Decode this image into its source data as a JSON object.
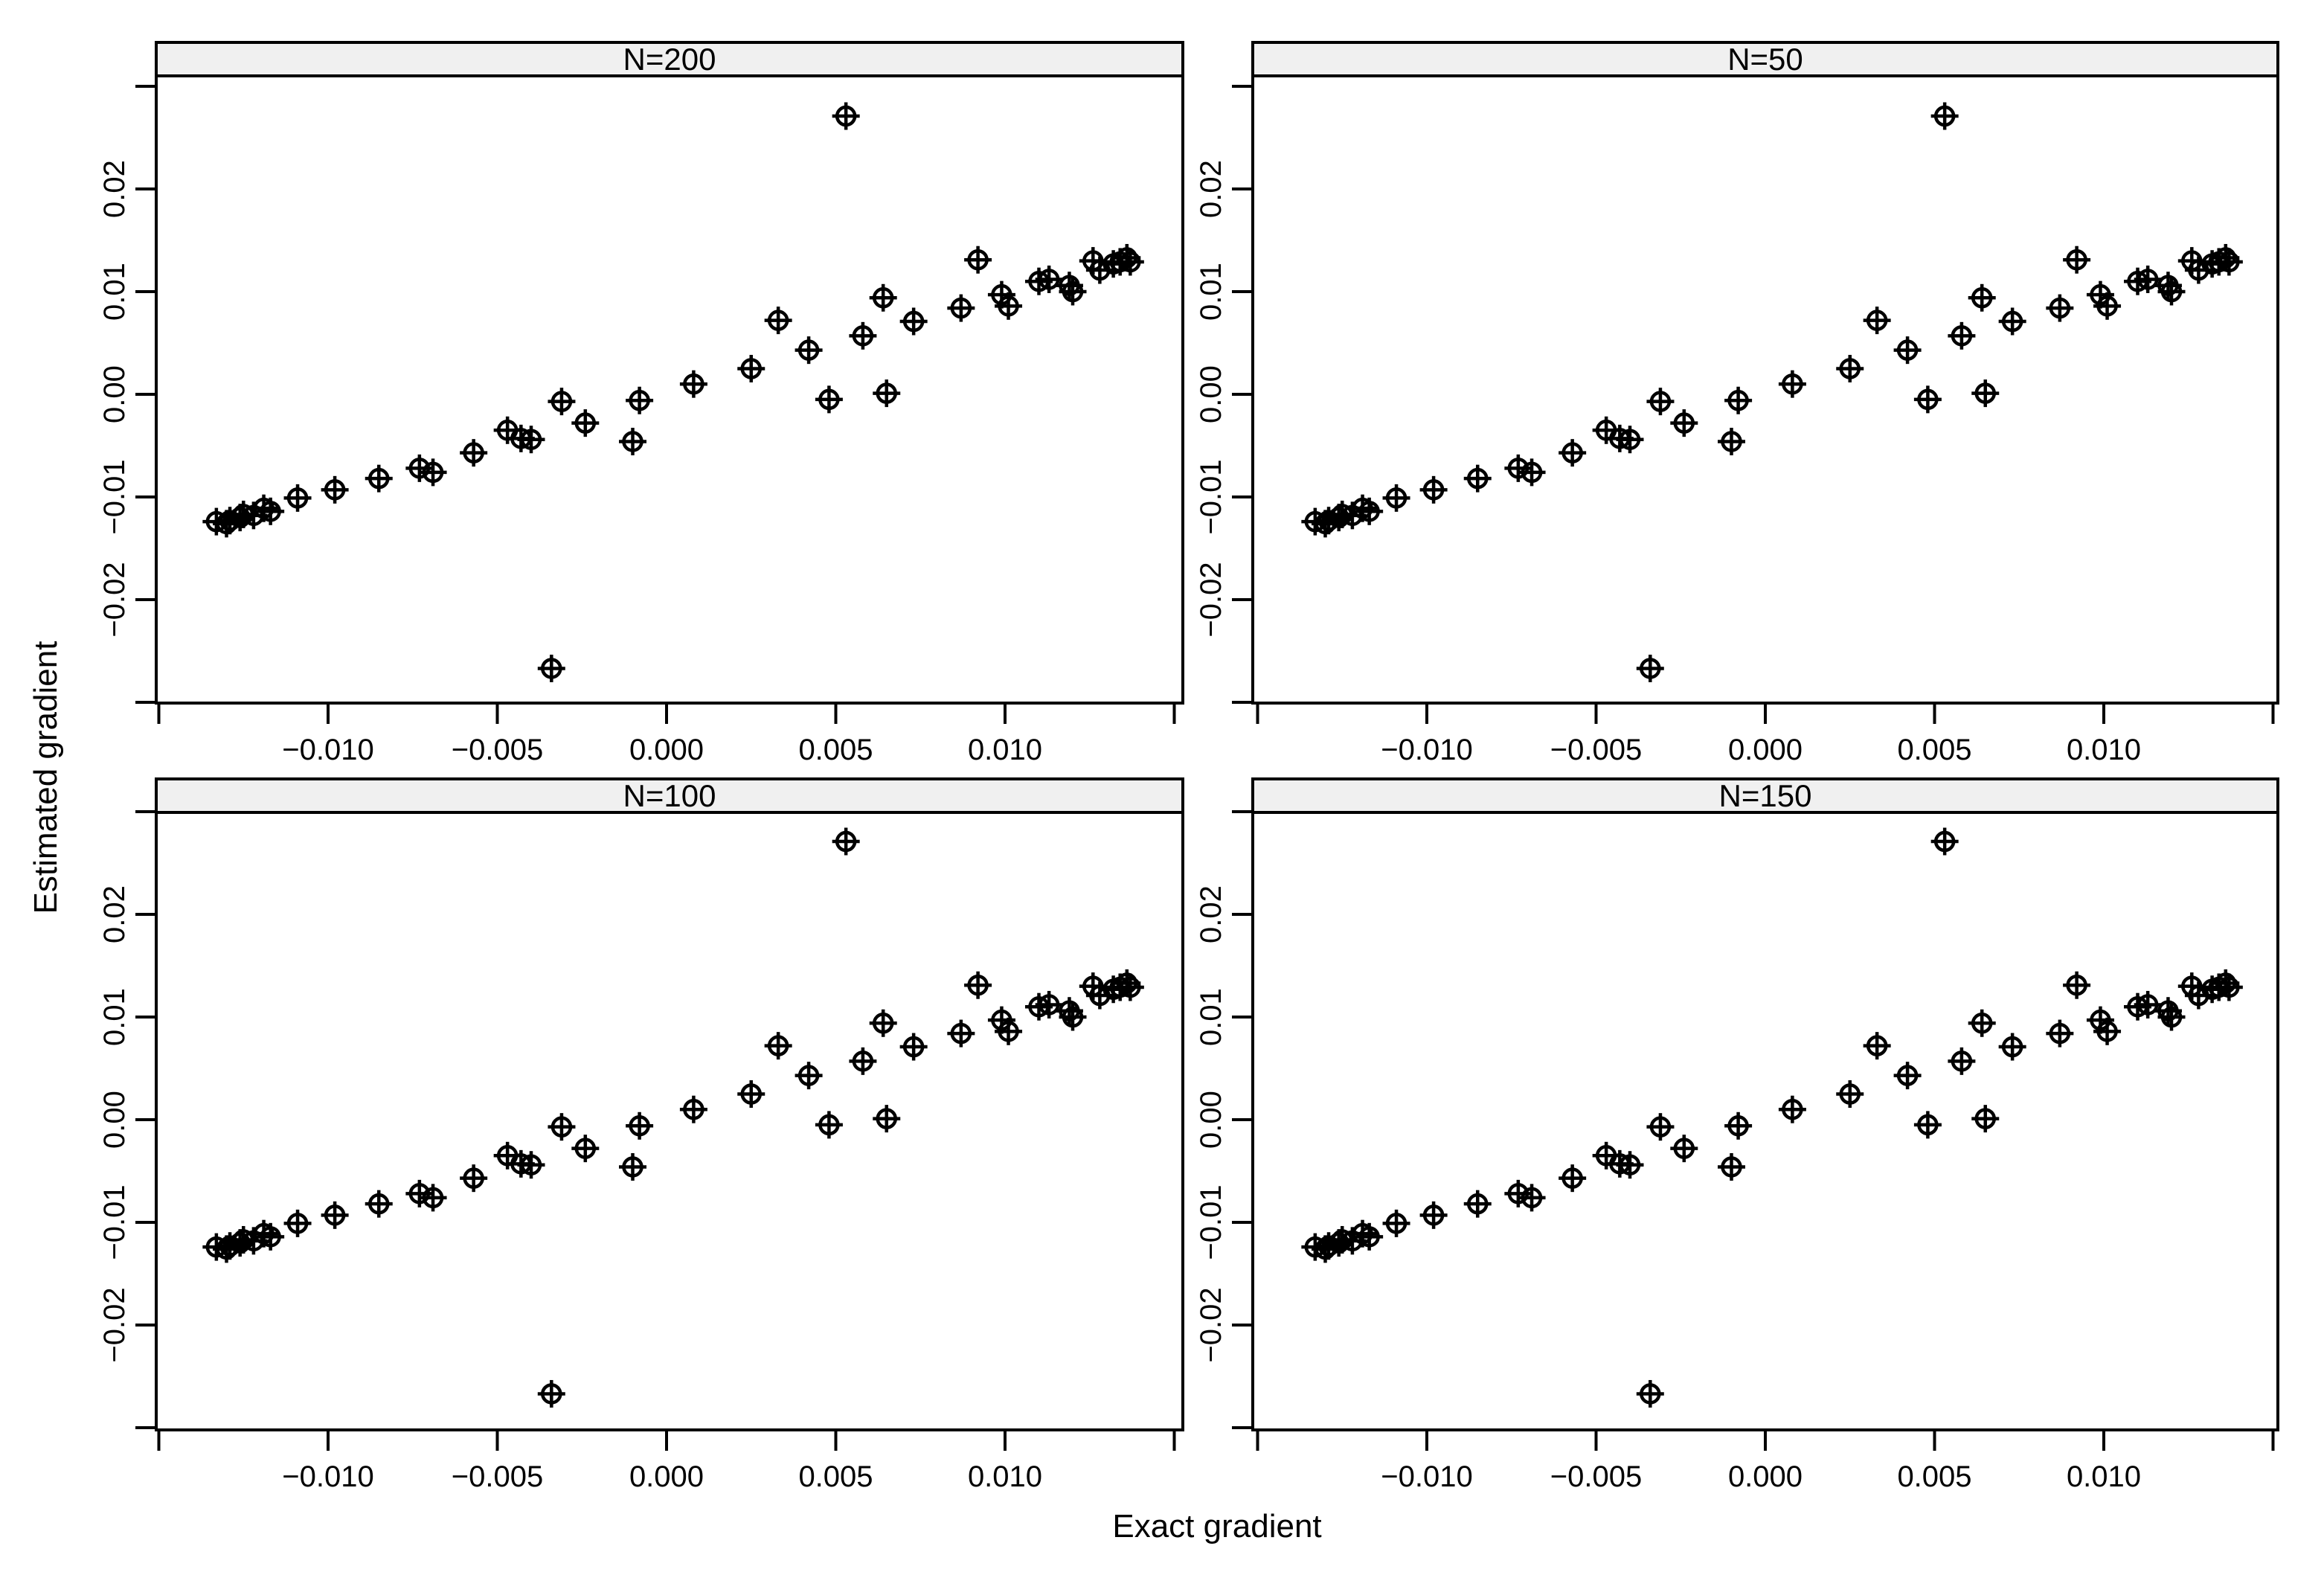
{
  "chart_data": {
    "type": "scatter",
    "layout": "2x2-trellis",
    "xlabel": "Exact gradient",
    "ylabel": "Estimated gradient",
    "marker": "circle-plus-icon",
    "colors": {
      "foreground": "#000000",
      "strip_background": "#f0f0f0",
      "background": "#ffffff"
    },
    "panels": [
      {
        "label": "N=200",
        "position": "top-left"
      },
      {
        "label": "N=50",
        "position": "top-right"
      },
      {
        "label": "N=100",
        "position": "bottom-left"
      },
      {
        "label": "N=150",
        "position": "bottom-right"
      }
    ],
    "points_shared_across_panels": true,
    "xlim": [
      -0.0152,
      0.0152
    ],
    "ylim": [
      -0.0305,
      0.0311
    ],
    "x_ticks": {
      "values": [
        -0.015,
        -0.01,
        -0.005,
        0.0,
        0.005,
        0.01,
        0.015
      ],
      "labels": [
        "",
        "−0.010",
        "−0.005",
        "0.000",
        "0.005",
        "0.010",
        ""
      ]
    },
    "y_ticks": {
      "values": [
        -0.03,
        -0.02,
        -0.01,
        0.0,
        0.01,
        0.02,
        0.03
      ],
      "labels": [
        "",
        "−0.02",
        "−0.01",
        "0.00",
        "0.01",
        "0.02",
        ""
      ]
    },
    "points": [
      [
        -0.0133,
        -0.0124
      ],
      [
        -0.013,
        -0.0126
      ],
      [
        -0.0129,
        -0.0123
      ],
      [
        -0.0126,
        -0.012
      ],
      [
        -0.0125,
        -0.0117
      ],
      [
        -0.0122,
        -0.0118
      ],
      [
        -0.0119,
        -0.0111
      ],
      [
        -0.0117,
        -0.0114
      ],
      [
        -0.0109,
        -0.0101
      ],
      [
        -0.0098,
        -0.0093
      ],
      [
        -0.0085,
        -0.0082
      ],
      [
        -0.0073,
        -0.0072
      ],
      [
        -0.0069,
        -0.0076
      ],
      [
        -0.0057,
        -0.0057
      ],
      [
        -0.0047,
        -0.0035
      ],
      [
        -0.0043,
        -0.0043
      ],
      [
        -0.004,
        -0.0044
      ],
      [
        -0.0034,
        -0.0267
      ],
      [
        -0.0031,
        -0.0007
      ],
      [
        -0.0024,
        -0.0028
      ],
      [
        -0.001,
        -0.0046
      ],
      [
        -0.0008,
        -0.0006
      ],
      [
        0.0008,
        0.001
      ],
      [
        0.0025,
        0.0025
      ],
      [
        0.0033,
        0.0072
      ],
      [
        0.0042,
        0.0043
      ],
      [
        0.0048,
        -0.0005
      ],
      [
        0.0053,
        0.0271
      ],
      [
        0.0058,
        0.0057
      ],
      [
        0.0064,
        0.0094
      ],
      [
        0.0065,
        0.0001
      ],
      [
        0.0073,
        0.0071
      ],
      [
        0.0087,
        0.0084
      ],
      [
        0.0092,
        0.0131
      ],
      [
        0.0099,
        0.0097
      ],
      [
        0.0101,
        0.0086
      ],
      [
        0.011,
        0.011
      ],
      [
        0.0113,
        0.0112
      ],
      [
        0.0119,
        0.0106
      ],
      [
        0.012,
        0.01
      ],
      [
        0.0126,
        0.013
      ],
      [
        0.0128,
        0.0121
      ],
      [
        0.0132,
        0.0127
      ],
      [
        0.0134,
        0.0129
      ],
      [
        0.0136,
        0.0133
      ],
      [
        0.0137,
        0.0129
      ]
    ]
  }
}
